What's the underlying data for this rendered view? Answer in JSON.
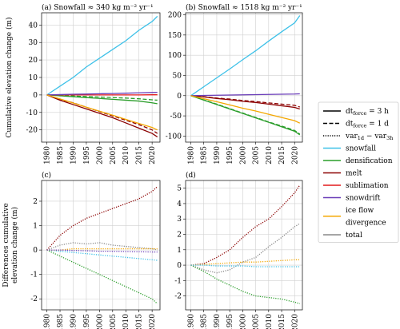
{
  "chart_data": [
    {
      "type": "line",
      "title": "(a) Snowfall ≈ 340 kg m⁻² yr⁻¹",
      "ylabel": [
        "Cumulative elevation change (m)"
      ],
      "x": [
        1980,
        1985,
        1990,
        1995,
        2000,
        2005,
        2010,
        2015,
        2020,
        2022
      ],
      "xlim": [
        1978,
        2023
      ],
      "xticks": [
        1980,
        1985,
        1990,
        1995,
        2000,
        2005,
        2010,
        2015,
        2020
      ],
      "ylim": [
        -27,
        47
      ],
      "yticks": [
        -20,
        -10,
        0,
        10,
        20,
        30,
        40
      ],
      "grid": true,
      "series": [
        {
          "color": "#3ec1e8",
          "dash": "solid",
          "values": [
            0,
            5,
            10,
            16,
            21,
            26,
            31,
            37,
            42,
            45
          ]
        },
        {
          "color": "#2a9d2a",
          "dash": "solid",
          "values": [
            0,
            -0.5,
            -1,
            -1.5,
            -2,
            -2.5,
            -3,
            -3.5,
            -4.5,
            -5
          ]
        },
        {
          "color": "#2a9d2a",
          "dash": "dashed",
          "values": [
            0,
            -0.3,
            -0.6,
            -0.9,
            -1.2,
            -1.5,
            -1.8,
            -2.2,
            -2.8,
            -3
          ]
        },
        {
          "color": "#8b0000",
          "dash": "solid",
          "values": [
            0,
            -3,
            -5.5,
            -8,
            -10.5,
            -13,
            -16,
            -19,
            -22,
            -24
          ]
        },
        {
          "color": "#8b0000",
          "dash": "dashed",
          "values": [
            0,
            -2.5,
            -4.5,
            -7,
            -9.5,
            -12,
            -14.5,
            -17,
            -20,
            -22
          ]
        },
        {
          "color": "#e31a1c",
          "dash": "solid",
          "values": [
            0,
            0,
            0,
            0,
            0,
            0,
            0,
            0,
            0.1,
            0.1
          ]
        },
        {
          "color": "#6a3db8",
          "dash": "solid",
          "values": [
            0,
            0.2,
            0.4,
            0.5,
            0.7,
            0.8,
            1,
            1.2,
            1.4,
            1.5
          ]
        },
        {
          "color": "#f4a700",
          "dash": "solid",
          "values": [
            0,
            -2.3,
            -4.6,
            -7,
            -9.3,
            -11.6,
            -14,
            -16.3,
            -18.6,
            -20
          ]
        }
      ]
    },
    {
      "type": "line",
      "title": "(b) Snowfall ≈ 1518 kg m⁻² yr⁻¹",
      "x": [
        1980,
        1985,
        1990,
        1995,
        2000,
        2005,
        2010,
        2015,
        2020,
        2022
      ],
      "xlim": [
        1978,
        2023
      ],
      "xticks": [
        1980,
        1985,
        1990,
        1995,
        2000,
        2005,
        2010,
        2015,
        2020
      ],
      "ylim": [
        -115,
        205
      ],
      "yticks": [
        -100,
        -50,
        0,
        50,
        100,
        150,
        200
      ],
      "grid": true,
      "series": [
        {
          "color": "#3ec1e8",
          "dash": "solid",
          "values": [
            0,
            22,
            44,
            66,
            89,
            111,
            135,
            158,
            180,
            198
          ]
        },
        {
          "color": "#2a9d2a",
          "dash": "solid",
          "values": [
            0,
            -11,
            -22,
            -33,
            -44,
            -55,
            -66,
            -77,
            -88,
            -97
          ]
        },
        {
          "color": "#2a9d2a",
          "dash": "dashed",
          "values": [
            0,
            -10.5,
            -21,
            -32,
            -43,
            -54,
            -65,
            -75,
            -86,
            -95
          ]
        },
        {
          "color": "#8b0000",
          "dash": "solid",
          "values": [
            0,
            -3,
            -7,
            -10,
            -14,
            -17,
            -21,
            -25,
            -29,
            -33
          ]
        },
        {
          "color": "#8b0000",
          "dash": "dashed",
          "values": [
            0,
            -2.5,
            -6,
            -8.5,
            -12,
            -14.5,
            -18,
            -21,
            -24,
            -28
          ]
        },
        {
          "color": "#6a3db8",
          "dash": "solid",
          "values": [
            0,
            0.5,
            1,
            1.5,
            2,
            2.5,
            3,
            3.5,
            4,
            4.5
          ]
        },
        {
          "color": "#f4a700",
          "dash": "solid",
          "values": [
            0,
            -7.5,
            -15,
            -23,
            -31,
            -38,
            -46,
            -54,
            -62,
            -68
          ]
        }
      ]
    },
    {
      "type": "line",
      "title": "(c)",
      "ylabel": [
        "Differences cumulative",
        "elevation change (m)"
      ],
      "x": [
        1980,
        1985,
        1990,
        1995,
        2000,
        2005,
        2010,
        2015,
        2020,
        2022
      ],
      "xlim": [
        1978,
        2023
      ],
      "xticks": [
        1980,
        1985,
        1990,
        1995,
        2000,
        2005,
        2010,
        2015,
        2020
      ],
      "ylim": [
        -2.45,
        2.85
      ],
      "yticks": [
        -2,
        -1,
        0,
        1,
        2
      ],
      "grid": true,
      "series": [
        {
          "color": "#8b0000",
          "dash": "dotted",
          "values": [
            0,
            0.6,
            1,
            1.3,
            1.5,
            1.7,
            1.9,
            2.1,
            2.4,
            2.6
          ]
        },
        {
          "color": "#2a9d2a",
          "dash": "dotted",
          "values": [
            0,
            -0.25,
            -0.5,
            -0.75,
            -1,
            -1.25,
            -1.5,
            -1.75,
            -2,
            -2.2
          ]
        },
        {
          "color": "#3ec1e8",
          "dash": "dotted",
          "values": [
            0,
            -0.05,
            -0.1,
            -0.15,
            -0.2,
            -0.25,
            -0.3,
            -0.35,
            -0.4,
            -0.42
          ]
        },
        {
          "color": "#888888",
          "dash": "dotted",
          "values": [
            0,
            0.2,
            0.3,
            0.25,
            0.3,
            0.2,
            0.15,
            0.1,
            0.05,
            0
          ]
        },
        {
          "color": "#f4a700",
          "dash": "dotted",
          "values": [
            0,
            0,
            0.05,
            0.05,
            0.05,
            0.05,
            0.05,
            0.05,
            0.05,
            0.05
          ]
        },
        {
          "color": "#6a3db8",
          "dash": "dotted",
          "values": [
            0,
            0,
            -0.02,
            -0.03,
            -0.05,
            -0.05,
            -0.06,
            -0.07,
            -0.08,
            -0.08
          ]
        }
      ]
    },
    {
      "type": "line",
      "title": "(d)",
      "x": [
        1980,
        1985,
        1990,
        1995,
        2000,
        2005,
        2010,
        2015,
        2020,
        2022
      ],
      "xlim": [
        1978,
        2023
      ],
      "xticks": [
        1980,
        1985,
        1990,
        1995,
        2000,
        2005,
        2010,
        2015,
        2020
      ],
      "ylim": [
        -2.9,
        5.5
      ],
      "yticks": [
        -2,
        -1,
        0,
        1,
        2,
        3,
        4,
        5
      ],
      "grid": true,
      "series": [
        {
          "color": "#8b0000",
          "dash": "dotted",
          "values": [
            0,
            0.1,
            0.5,
            1,
            1.8,
            2.5,
            3,
            3.8,
            4.7,
            5.2
          ]
        },
        {
          "color": "#888888",
          "dash": "dotted",
          "values": [
            0,
            -0.3,
            -0.5,
            -0.3,
            0.2,
            0.5,
            1.2,
            1.8,
            2.5,
            2.7
          ]
        },
        {
          "color": "#2a9d2a",
          "dash": "dotted",
          "values": [
            0,
            -0.4,
            -0.9,
            -1.3,
            -1.7,
            -2,
            -2.1,
            -2.2,
            -2.4,
            -2.5
          ]
        },
        {
          "color": "#f4a700",
          "dash": "dotted",
          "values": [
            0,
            0.05,
            0.1,
            0.15,
            0.2,
            0.2,
            0.25,
            0.3,
            0.35,
            0.35
          ]
        },
        {
          "color": "#3ec1e8",
          "dash": "dotted",
          "values": [
            0,
            0,
            -0.05,
            -0.05,
            -0.05,
            -0.1,
            -0.1,
            -0.1,
            -0.1,
            -0.1
          ]
        }
      ]
    }
  ],
  "legend": [
    {
      "label": [
        "dt",
        "force",
        " = 3 h"
      ],
      "color": "#000000",
      "dash": "solid"
    },
    {
      "label": [
        "dt",
        "force",
        " = 1 d"
      ],
      "color": "#000000",
      "dash": "dashed"
    },
    {
      "label": [
        "var",
        "1d",
        " − var",
        "3h"
      ],
      "color": "#000000",
      "dash": "dotted"
    },
    {
      "label": [
        "snowfall"
      ],
      "color": "#3ec1e8",
      "dash": "solid"
    },
    {
      "label": [
        "densification"
      ],
      "color": "#2a9d2a",
      "dash": "solid"
    },
    {
      "label": [
        "melt"
      ],
      "color": "#8b0000",
      "dash": "solid"
    },
    {
      "label": [
        "sublimation"
      ],
      "color": "#e31a1c",
      "dash": "solid"
    },
    {
      "label": [
        "snowdrift"
      ],
      "color": "#6a3db8",
      "dash": "solid"
    },
    {
      "label": [
        "ice flow",
        "divergence"
      ],
      "lines": true,
      "color": "#f4a700",
      "dash": "solid"
    },
    {
      "label": [
        "total"
      ],
      "color": "#888888",
      "dash": "solid"
    }
  ]
}
